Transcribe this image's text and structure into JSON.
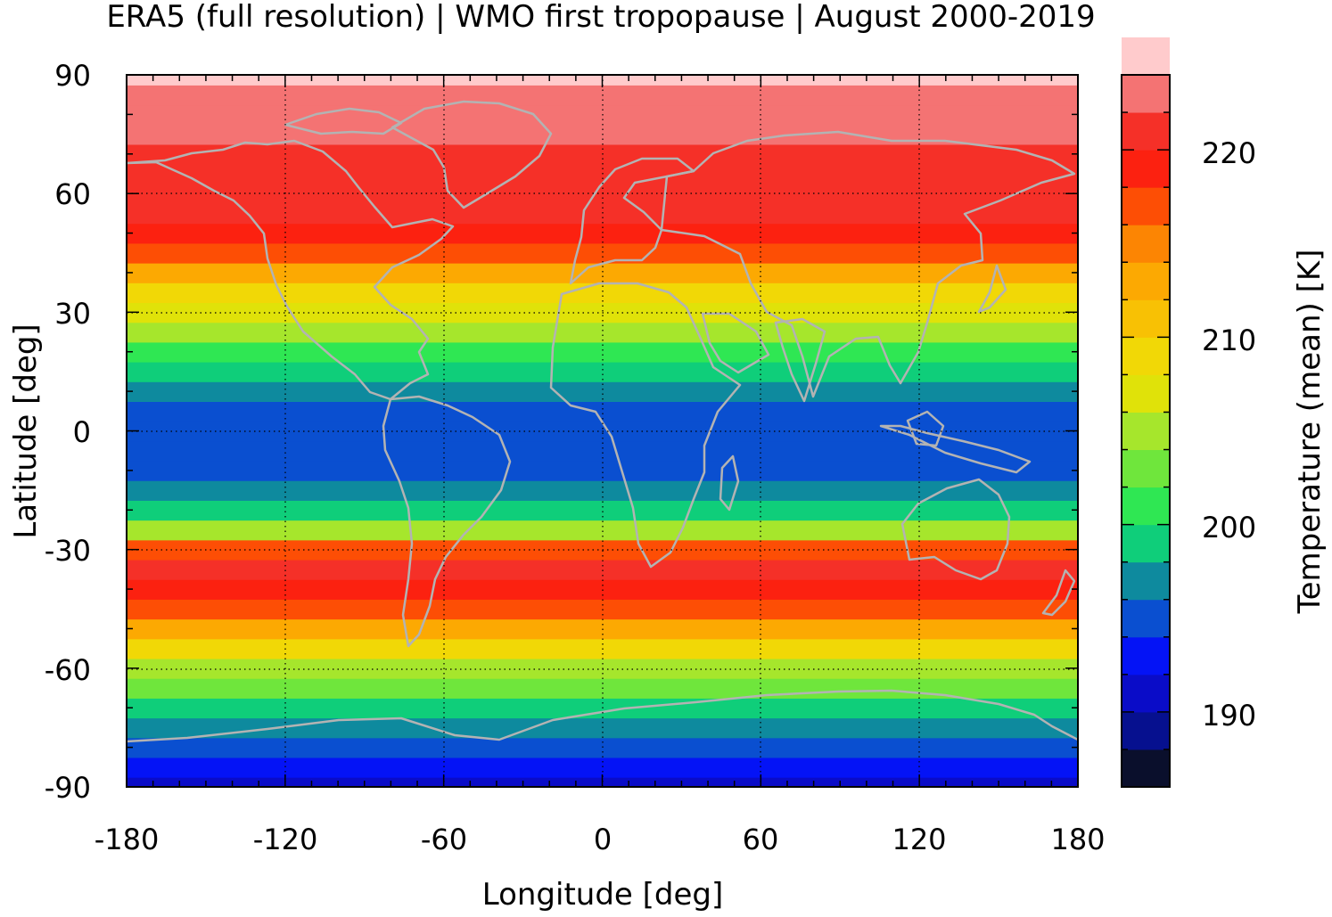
{
  "title": "ERA5 (full resolution) | WMO first tropopause | August 2000-2019",
  "chart_data": {
    "type": "heatmap",
    "title": "ERA5 (full resolution) | WMO first tropopause | August 2000-2019",
    "xlabel": "Longitude [deg]",
    "ylabel": "Latitude [deg]",
    "xlim": [
      -180,
      180
    ],
    "ylim": [
      -90,
      90
    ],
    "x_ticks": [
      -180,
      -120,
      -60,
      0,
      60,
      120,
      180
    ],
    "x_tick_labels": [
      "-180",
      "-120",
      "-60",
      "0",
      "60",
      "120",
      "180"
    ],
    "y_ticks": [
      90,
      60,
      30,
      0,
      -30,
      -60,
      -90
    ],
    "y_tick_labels": [
      "90",
      "60",
      "30",
      "0",
      "-30",
      "-60",
      "-90"
    ],
    "grid": true,
    "grid_style": "dotted",
    "coastlines_color": "#b3b3b3",
    "zonal_mean_temperature": {
      "latitudes": [
        -90,
        -85,
        -80,
        -75,
        -70,
        -65,
        -60,
        -55,
        -50,
        -45,
        -40,
        -35,
        -30,
        -25,
        -20,
        -15,
        -10,
        -5,
        0,
        5,
        10,
        15,
        20,
        25,
        30,
        35,
        40,
        45,
        50,
        55,
        60,
        65,
        70,
        75,
        80,
        85,
        90
      ],
      "temperature": [
        191,
        192,
        194,
        196,
        199,
        202,
        205,
        208,
        212,
        217,
        219,
        220,
        217,
        204,
        199,
        196,
        195,
        195,
        195,
        195,
        196,
        198,
        201,
        204,
        206,
        209,
        212,
        216,
        219,
        220,
        220,
        221,
        221,
        222,
        222,
        223,
        224
      ]
    },
    "colorbar": {
      "label": "Temperature (mean) [K]",
      "min": 186,
      "max": 224,
      "step": 2,
      "tick_values": [
        190,
        200,
        210,
        220
      ],
      "tick_labels": [
        "190",
        "200",
        "210",
        "220"
      ],
      "colors": [
        "#0a0f2c",
        "#06108f",
        "#0a0cc8",
        "#0413f6",
        "#0a4fd0",
        "#0e8a9e",
        "#0fce7a",
        "#2fe753",
        "#6fe63c",
        "#a6e62c",
        "#e0e209",
        "#f1d806",
        "#f8c104",
        "#fca902",
        "#fc8503",
        "#fd4e05",
        "#fc2110",
        "#f53028",
        "#f47373",
        "#ffcbcc"
      ]
    }
  }
}
